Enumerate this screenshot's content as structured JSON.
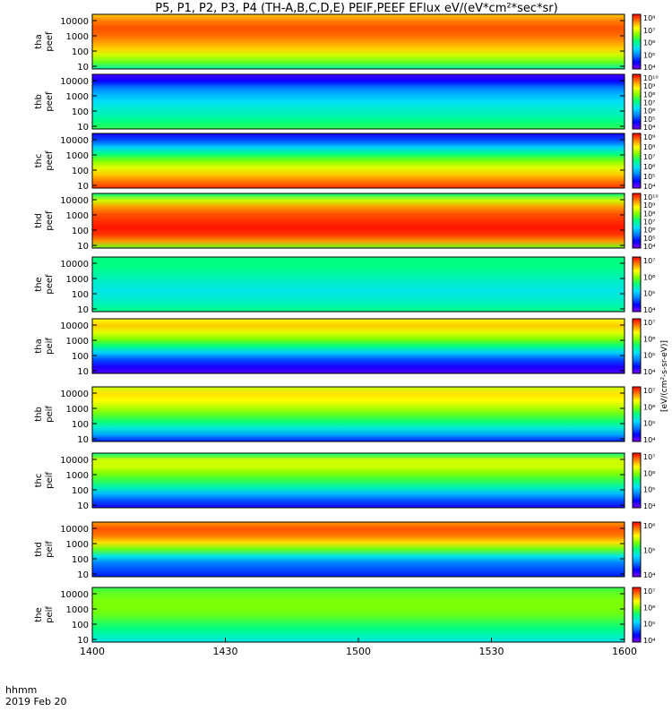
{
  "title": "P5, P1, P2, P3, P4 (TH-A,B,C,D,E) PEIF,PEEF EFlux eV/(eV*cm²*sec*sr)",
  "time_axis": {
    "label_line1": "hhmm",
    "label_line2": "2019 Feb 20",
    "ticks": [
      "1400",
      "1430",
      "1500",
      "1530",
      "1600"
    ],
    "range_minutes": [
      0,
      120
    ]
  },
  "colorbar_units": "[eV/(cm²-s-sr-eV)]",
  "colorscale": [
    "#7f00ff",
    "#0000ff",
    "#0080ff",
    "#00e0ff",
    "#00ff80",
    "#80ff00",
    "#ffff00",
    "#ff8000",
    "#ff0000"
  ],
  "chart_data": {
    "type": "heatmap",
    "y_scale": "log",
    "y_ticks": [
      "10",
      "100",
      "1000",
      "10000"
    ],
    "panels": [
      {
        "label": "tha",
        "sublabel": "peef",
        "cbar_ticks": [
          "10⁴",
          "10⁵",
          "10⁶",
          "10⁷",
          "10⁸"
        ],
        "profile": [
          0.45,
          0.6,
          0.7,
          0.8,
          0.85,
          0.9,
          0.92,
          0.88,
          0.8
        ]
      },
      {
        "label": "thb",
        "sublabel": "peef",
        "cbar_ticks": [
          "10⁴",
          "10⁵",
          "10⁶",
          "10⁷",
          "10⁸",
          "10⁹",
          "10¹⁰"
        ],
        "profile": [
          0.55,
          0.5,
          0.45,
          0.42,
          0.38,
          0.32,
          0.25,
          0.12,
          0.05
        ]
      },
      {
        "label": "thc",
        "sublabel": "peef",
        "cbar_ticks": [
          "10⁴",
          "10⁵",
          "10⁶",
          "10⁷",
          "10⁸",
          "10⁹"
        ],
        "profile": [
          0.95,
          0.88,
          0.8,
          0.72,
          0.62,
          0.5,
          0.35,
          0.2,
          0.1
        ]
      },
      {
        "label": "thd",
        "sublabel": "peef",
        "cbar_ticks": [
          "10⁴",
          "10⁵",
          "10⁶",
          "10⁷",
          "10⁸",
          "10⁹",
          "10¹⁰"
        ],
        "profile": [
          0.6,
          0.85,
          0.95,
          0.98,
          0.95,
          0.92,
          0.85,
          0.7,
          0.5
        ]
      },
      {
        "label": "the",
        "sublabel": "peef",
        "cbar_ticks": [
          "10⁴",
          "10⁵",
          "10⁶",
          "10⁷"
        ],
        "profile": [
          0.5,
          0.45,
          0.42,
          0.4,
          0.42,
          0.45,
          0.48,
          0.5,
          0.5
        ]
      },
      {
        "label": "tha",
        "sublabel": "peif",
        "cbar_ticks": [
          "10⁴",
          "10⁵",
          "10⁶",
          "10⁷"
        ],
        "profile": [
          0.05,
          0.1,
          0.2,
          0.35,
          0.5,
          0.62,
          0.72,
          0.8,
          0.75
        ]
      },
      {
        "label": "thb",
        "sublabel": "peif",
        "cbar_ticks": [
          "10⁴",
          "10⁵",
          "10⁶",
          "10⁷"
        ],
        "profile": [
          0.15,
          0.3,
          0.42,
          0.52,
          0.6,
          0.68,
          0.75,
          0.78,
          0.7
        ]
      },
      {
        "label": "thc",
        "sublabel": "peif",
        "cbar_ticks": [
          "10⁴",
          "10⁵",
          "10⁶",
          "10⁷"
        ],
        "profile": [
          0.1,
          0.2,
          0.32,
          0.45,
          0.55,
          0.62,
          0.7,
          0.7,
          0.5
        ]
      },
      {
        "label": "thd",
        "sublabel": "peif",
        "cbar_ticks": [
          "10⁴",
          "10⁵",
          "10⁶"
        ],
        "profile": [
          0.15,
          0.2,
          0.25,
          0.4,
          0.6,
          0.78,
          0.88,
          0.92,
          0.85
        ]
      },
      {
        "label": "the",
        "sublabel": "peif",
        "cbar_ticks": [
          "10⁴",
          "10⁵",
          "10⁶",
          "10⁷"
        ],
        "profile": [
          0.4,
          0.45,
          0.5,
          0.55,
          0.6,
          0.62,
          0.62,
          0.6,
          0.55
        ]
      }
    ]
  }
}
